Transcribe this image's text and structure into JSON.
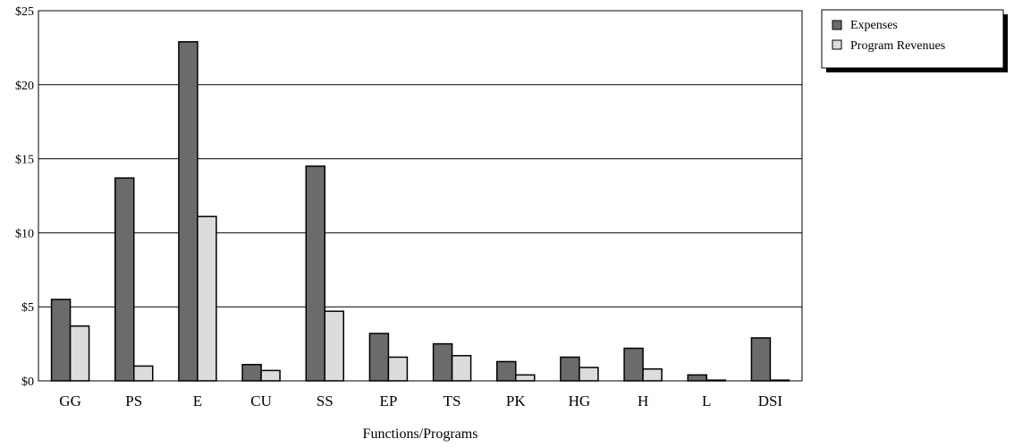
{
  "chart_data": {
    "type": "bar",
    "categories": [
      "GG",
      "PS",
      "E",
      "CU",
      "SS",
      "EP",
      "TS",
      "PK",
      "HG",
      "H",
      "L",
      "DSI"
    ],
    "series": [
      {
        "name": "Expenses",
        "values": [
          5.5,
          13.7,
          22.9,
          1.1,
          14.5,
          3.2,
          2.5,
          1.3,
          1.6,
          2.2,
          0.4,
          2.9
        ],
        "color": "#6b6b6b"
      },
      {
        "name": "Program Revenues",
        "values": [
          3.7,
          1.0,
          11.1,
          0.7,
          4.7,
          1.6,
          1.7,
          0.4,
          0.9,
          0.8,
          0.05,
          0.05
        ],
        "color": "#dcdcdc"
      }
    ],
    "title": "",
    "xlabel": "Functions/Programs",
    "ylabel": "",
    "ylim": [
      0,
      25
    ],
    "yticks": [
      0,
      5,
      10,
      15,
      20,
      25
    ],
    "ytick_labels": [
      "$0",
      "$5",
      "$10",
      "$15",
      "$20",
      "$25"
    ],
    "grid": "horizontal",
    "legend_position": "top-right"
  }
}
